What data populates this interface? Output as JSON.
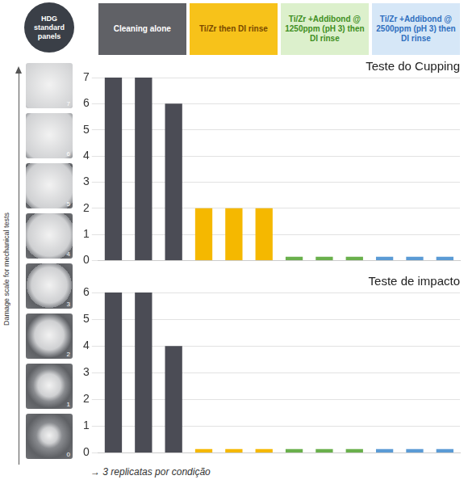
{
  "panel_header": "HDG standard panels",
  "scale_label": "Damage scale for mechanical tests",
  "scale_levels": [
    7,
    6,
    5,
    4,
    3,
    2,
    1,
    0
  ],
  "conditions": [
    {
      "label": "Cleaning alone",
      "color": "#606166"
    },
    {
      "label": "Ti/Zr then DI rinse",
      "color": "#f7c21a"
    },
    {
      "label": "Ti/Zr +Addibond @ 1250ppm (pH 3) then DI rinse",
      "color": "#dcf0cc"
    },
    {
      "label": "Ti/Zr +Addibond @ 2500ppm (pH 3) then DI rinse",
      "color": "#d6e7f7"
    }
  ],
  "chart_data": [
    {
      "type": "bar",
      "title": "Teste do Cupping",
      "categories": [
        null,
        null,
        null,
        null,
        null,
        null,
        null,
        null,
        null,
        null,
        null,
        null
      ],
      "values": [
        7,
        7,
        6,
        2,
        2,
        2,
        0.15,
        0.15,
        0.15,
        0.15,
        0.15,
        0.15
      ],
      "colors": [
        "#4b4c55",
        "#4b4c55",
        "#4b4c55",
        "#f5b800",
        "#f5b800",
        "#f5b800",
        "#6ab04c",
        "#6ab04c",
        "#6ab04c",
        "#5b9bd5",
        "#5b9bd5",
        "#5b9bd5"
      ],
      "ylim": [
        0,
        7
      ],
      "yticks": [
        0,
        1,
        2,
        3,
        4,
        5,
        6,
        7
      ],
      "grid": true,
      "tick_labels": "y"
    },
    {
      "type": "bar",
      "title": "Teste de impacto",
      "categories": [
        null,
        null,
        null,
        null,
        null,
        null,
        null,
        null,
        null,
        null,
        null,
        null
      ],
      "values": [
        6,
        6,
        4,
        0.15,
        0.15,
        0.15,
        0.15,
        0.15,
        0.15,
        0.15,
        0.15,
        0.15
      ],
      "colors": [
        "#4b4c55",
        "#4b4c55",
        "#4b4c55",
        "#f5b800",
        "#f5b800",
        "#f5b800",
        "#6ab04c",
        "#6ab04c",
        "#6ab04c",
        "#5b9bd5",
        "#5b9bd5",
        "#5b9bd5"
      ],
      "ylim": [
        0,
        6
      ],
      "yticks": [
        0,
        1,
        2,
        3,
        4,
        5,
        6
      ],
      "grid": true,
      "tick_labels": "y"
    }
  ],
  "footnote": "→ 3 replicatas por condição"
}
